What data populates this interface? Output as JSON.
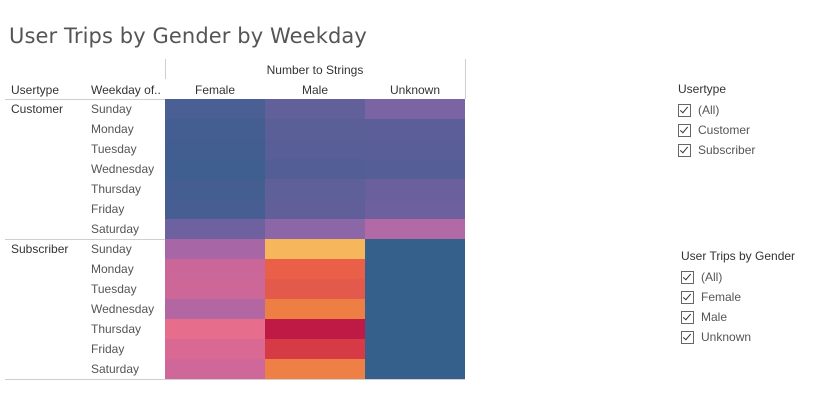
{
  "chart_data": {
    "type": "heatmap",
    "title": "User Trips by Gender by Weekday",
    "row_headers": [
      "Usertype",
      "Weekday of.."
    ],
    "column_group_label": "Number to Strings",
    "columns": [
      "Female",
      "Male",
      "Unknown"
    ],
    "usertypes": [
      "Customer",
      "Subscriber"
    ],
    "weekdays": [
      "Sunday",
      "Monday",
      "Tuesday",
      "Wednesday",
      "Thursday",
      "Friday",
      "Saturday"
    ],
    "cell_colors": {
      "Customer": [
        [
          "#4a5f93",
          "#62609b",
          "#7a64a3"
        ],
        [
          "#445e91",
          "#5a5f98",
          "#5c5e99"
        ],
        [
          "#425e91",
          "#585e97",
          "#5a5e98"
        ],
        [
          "#3f5f90",
          "#535e96",
          "#555e97"
        ],
        [
          "#455e92",
          "#5f5f9a",
          "#6a609d"
        ],
        [
          "#475e92",
          "#605f9a",
          "#6d609e"
        ],
        [
          "#6d619f",
          "#8c67a8",
          "#b16aa5"
        ]
      ],
      "Subscriber": [
        [
          "#a766a6",
          "#f5b65c",
          "#36608c"
        ],
        [
          "#cb6798",
          "#e95f47",
          "#36608c"
        ],
        [
          "#cc6797",
          "#e35a4c",
          "#36608c"
        ],
        [
          "#b266a2",
          "#ed7f45",
          "#36608c"
        ],
        [
          "#e76d8c",
          "#bf1a45",
          "#36608c"
        ],
        [
          "#d96893",
          "#d53a45",
          "#36608c"
        ],
        [
          "#d0679a",
          "#ee8045",
          "#36608c"
        ]
      ]
    }
  },
  "filters": {
    "usertype": {
      "title": "Usertype",
      "items": [
        "(All)",
        "Customer",
        "Subscriber"
      ]
    },
    "gender": {
      "title": "User Trips by Gender",
      "items": [
        "(All)",
        "Female",
        "Male",
        "Unknown"
      ]
    }
  }
}
